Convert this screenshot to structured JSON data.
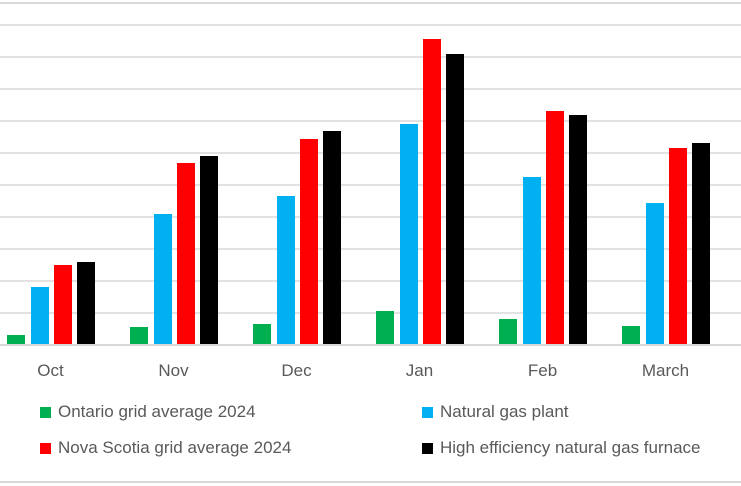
{
  "chart_data": {
    "type": "bar",
    "categories": [
      "Oct",
      "Nov",
      "Dec",
      "Jan",
      "Feb",
      "March"
    ],
    "series": [
      {
        "name": "Ontario grid average 2024",
        "color": "#00B050",
        "values": [
          0.3,
          0.55,
          0.65,
          1.05,
          0.8,
          0.6
        ]
      },
      {
        "name": "Natural gas plant",
        "color": "#00B0F0",
        "values": [
          1.8,
          4.1,
          4.65,
          6.9,
          5.25,
          4.45
        ]
      },
      {
        "name": "Nova Scotia grid average 2024",
        "color": "#FF0000",
        "values": [
          2.5,
          5.7,
          6.45,
          9.55,
          7.3,
          6.15
        ]
      },
      {
        "name": "High efficiency natural gas furnace",
        "color": "#000000",
        "values": [
          2.6,
          5.9,
          6.7,
          9.1,
          7.2,
          6.3
        ]
      }
    ],
    "xlabel": "",
    "ylabel": "",
    "ylim": [
      0,
      10.7
    ],
    "y_gridline_interval": 1,
    "grid": "horizontal",
    "y_tick_labels_visible": false,
    "x_tick_labels_visible": true,
    "legend_position": "bottom-two-columns"
  },
  "colors": {
    "gridline": "#E2E2E2",
    "axis_line": "#D9D9D9",
    "chart_border": "#D9D9D9",
    "label_text": "#595959",
    "background": "#FFFFFF"
  }
}
